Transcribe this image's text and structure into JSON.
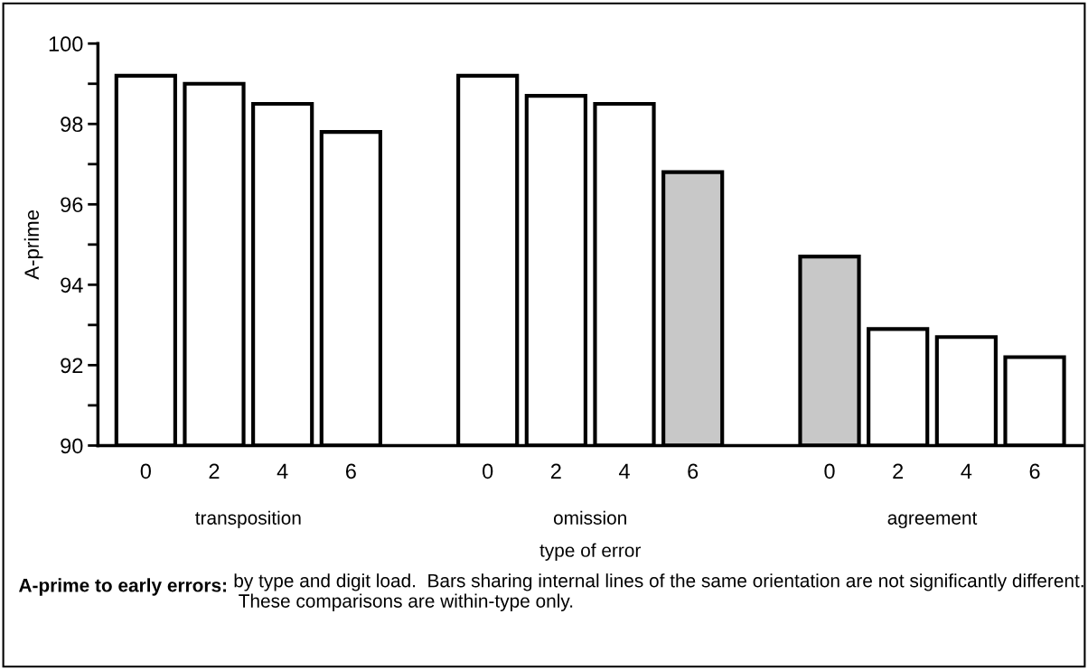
{
  "chart_data": {
    "type": "bar",
    "ylabel": "A-prime",
    "xlabel": "type of error",
    "categories": [
      "0",
      "2",
      "4",
      "6",
      null,
      "0",
      "2",
      "4",
      "6",
      null,
      "0",
      "2",
      "4",
      "6"
    ],
    "values": [
      99.2,
      99.0,
      98.5,
      97.8,
      null,
      99.2,
      98.7,
      98.5,
      96.8,
      null,
      94.7,
      92.9,
      92.7,
      92.2
    ],
    "colors": [
      "#ffffff",
      "#ffffff",
      "#ffffff",
      "#ffffff",
      "#ffffff",
      "#ffffff",
      "#ffffff",
      "#ffffff",
      "#c8c8c8",
      "#ffffff",
      "#c8c8c8",
      "#ffffff",
      "#ffffff",
      "#ffffff"
    ],
    "ylim": [
      90,
      100
    ],
    "yticks": [
      90,
      {
        "value": 91,
        "label": null
      },
      92,
      {
        "value": 93,
        "label": null
      },
      94,
      {
        "value": 95,
        "label": null
      },
      96,
      {
        "value": 97,
        "label": null
      },
      98,
      {
        "value": 99,
        "label": null
      },
      100
    ],
    "grid": false,
    "legend": false,
    "annotations": [
      "transposition",
      "omission",
      "agreement",
      "A-prime to early errors:",
      "by type and digit load.  Bars sharing internal lines of the same orientation are not significantly different.  These comparisons are within-type only."
    ]
  }
}
